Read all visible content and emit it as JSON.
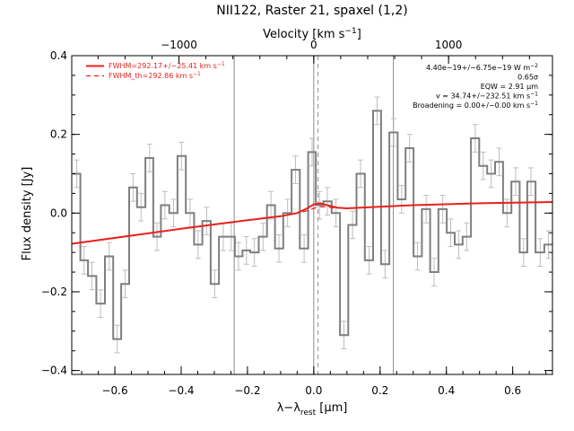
{
  "chart_data": {
    "type": "line",
    "title": "NII122, Raster 21, spaxel (1,2)",
    "xlabel": "λ−λ",
    "xlabel_sub": "rest",
    "xlabel_unit": " [μm]",
    "ylabel": "Flux density [Jy]",
    "top_axis_label": "Velocity [km s",
    "top_axis_label_sup": "−1",
    "top_axis_label_end": "]",
    "xlim": [
      -0.73,
      0.72
    ],
    "ylim": [
      -0.41,
      0.4
    ],
    "x_ticks": [
      "−0.6",
      "−0.4",
      "−0.2",
      "0.0",
      "0.2",
      "0.4",
      "0.6"
    ],
    "x_tick_values": [
      -0.6,
      -0.4,
      -0.2,
      0.0,
      0.2,
      0.4,
      0.6
    ],
    "y_ticks": [
      "−0.4",
      "−0.2",
      "0.0",
      "0.2",
      "0.4"
    ],
    "y_tick_values": [
      -0.4,
      -0.2,
      0.0,
      0.2,
      0.4
    ],
    "top_ticks": [
      "−1000",
      "0",
      "1000"
    ],
    "top_tick_values": [
      -1000,
      0,
      1000
    ],
    "vertical_lines": [
      {
        "x": -0.24,
        "style": "solid"
      },
      {
        "x": 0.0,
        "style": "solid"
      },
      {
        "x": 0.013,
        "style": "dashed"
      },
      {
        "x": 0.24,
        "style": "solid"
      }
    ],
    "spectrum": {
      "x": [
        -0.715,
        -0.693,
        -0.669,
        -0.643,
        -0.617,
        -0.593,
        -0.569,
        -0.545,
        -0.521,
        -0.495,
        -0.473,
        -0.449,
        -0.423,
        -0.399,
        -0.373,
        -0.349,
        -0.323,
        -0.299,
        -0.273,
        -0.249,
        -0.227,
        -0.203,
        -0.179,
        -0.153,
        -0.129,
        -0.105,
        -0.079,
        -0.055,
        -0.029,
        -0.005,
        0.017,
        0.041,
        0.067,
        0.091,
        0.117,
        0.141,
        0.167,
        0.191,
        0.215,
        0.241,
        0.265,
        0.289,
        0.313,
        0.339,
        0.363,
        0.389,
        0.413,
        0.437,
        0.461,
        0.487,
        0.511,
        0.535,
        0.559,
        0.583,
        0.609,
        0.633,
        0.655,
        0.683,
        0.708
      ],
      "y": [
        0.1,
        -0.12,
        -0.16,
        -0.23,
        -0.11,
        -0.32,
        -0.18,
        0.065,
        0.015,
        0.14,
        -0.06,
        0.02,
        0.0,
        0.145,
        0.0,
        -0.08,
        -0.02,
        -0.18,
        -0.06,
        -0.06,
        -0.11,
        -0.095,
        -0.1,
        -0.06,
        0.02,
        -0.09,
        0.0,
        0.11,
        -0.09,
        0.155,
        0.02,
        0.03,
        0.0,
        -0.31,
        -0.03,
        0.1,
        -0.12,
        0.26,
        -0.13,
        0.205,
        0.035,
        0.165,
        -0.11,
        0.01,
        -0.15,
        0.01,
        -0.05,
        -0.08,
        -0.06,
        0.19,
        0.12,
        0.1,
        0.13,
        0.0,
        0.08,
        -0.1,
        0.08,
        -0.1,
        -0.08
      ],
      "err": [
        0.035,
        0.035,
        0.035,
        0.035,
        0.035,
        0.035,
        0.035,
        0.035,
        0.035,
        0.035,
        0.035,
        0.035,
        0.035,
        0.035,
        0.035,
        0.035,
        0.035,
        0.035,
        0.035,
        0.035,
        0.035,
        0.035,
        0.035,
        0.035,
        0.035,
        0.035,
        0.035,
        0.035,
        0.035,
        0.035,
        0.035,
        0.035,
        0.035,
        0.035,
        0.035,
        0.035,
        0.035,
        0.035,
        0.035,
        0.035,
        0.035,
        0.035,
        0.035,
        0.035,
        0.035,
        0.035,
        0.035,
        0.035,
        0.035,
        0.035,
        0.035,
        0.035,
        0.035,
        0.035,
        0.035,
        0.035,
        0.035,
        0.035,
        0.035
      ]
    },
    "fit": {
      "x": [
        -0.73,
        -0.4,
        -0.2,
        -0.1,
        -0.05,
        -0.02,
        0.0,
        0.02,
        0.04,
        0.07,
        0.1,
        0.3,
        0.5,
        0.72
      ],
      "y": [
        -0.078,
        -0.04,
        -0.018,
        -0.008,
        0.0,
        0.012,
        0.022,
        0.025,
        0.02,
        0.014,
        0.012,
        0.02,
        0.025,
        0.028
      ]
    },
    "fit_th": {
      "x": [
        -0.73,
        -0.4,
        -0.2,
        -0.1,
        -0.05,
        -0.02,
        0.0,
        0.02,
        0.04,
        0.06,
        0.1,
        0.3,
        0.5,
        0.72
      ],
      "y": [
        -0.078,
        -0.04,
        -0.018,
        -0.008,
        0.0,
        0.006,
        0.012,
        0.016,
        0.016,
        0.013,
        0.012,
        0.02,
        0.025,
        0.028
      ]
    },
    "legend": {
      "placement": "top-left",
      "entries": [
        {
          "label": "FWHM=292.17+/−25.41 km s",
          "sup": "−1",
          "style": "solid"
        },
        {
          "label": "FWHM_th=292.86 km s",
          "sup": "−1",
          "style": "dashed"
        }
      ]
    },
    "annotations": {
      "placement": "top-right",
      "lines": [
        {
          "text": "4.40e−19+/−6.75e−19 W m",
          "sup": "−2"
        },
        {
          "text": "0.65σ",
          "sup": ""
        },
        {
          "text": "EQW = 2.91 μm",
          "sup": ""
        },
        {
          "text": "v = 34.74+/−232.51 km s",
          "sup": "−1"
        },
        {
          "text": "Broadening = 0.00+/−0.00 km s",
          "sup": "−1"
        }
      ]
    },
    "colors": {
      "spectrum": "#7f7f7f",
      "errorbar": "#bdbdbd",
      "fit": "#e8221a",
      "axis": "#000000",
      "vline": "#8c8c8c"
    }
  }
}
